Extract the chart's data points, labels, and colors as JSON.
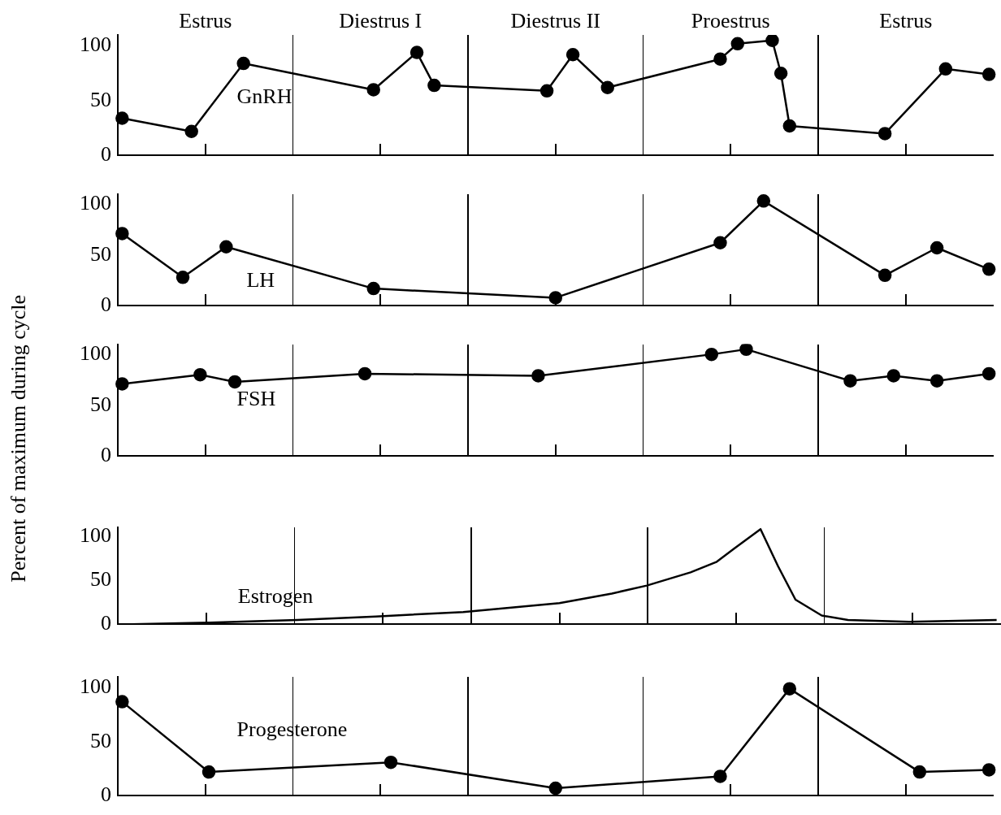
{
  "chart_data": [
    {
      "type": "line",
      "ylim": [
        0,
        110
      ],
      "yticks": [
        0,
        50,
        100
      ],
      "tick_labels": "y",
      "marker": "circle",
      "annotations": [
        "Estrus",
        "Diestrus I",
        "Diestrus II",
        "Proestrus",
        "Estrus"
      ],
      "categories": [
        null,
        null,
        null,
        null,
        null,
        null,
        null,
        null,
        null,
        null,
        null,
        null,
        null,
        null,
        null,
        null,
        null,
        null,
        null,
        null,
        null,
        null,
        null,
        null,
        null,
        null,
        null,
        null,
        null,
        null,
        null,
        null,
        null,
        null,
        null,
        null,
        null,
        null,
        null,
        null,
        null,
        null,
        null,
        null,
        null,
        null,
        null,
        null,
        null,
        null,
        null,
        null,
        null,
        null,
        null,
        null,
        null,
        null,
        null,
        null,
        null,
        null,
        null,
        null,
        null,
        null,
        null,
        null,
        null,
        null,
        null,
        null,
        null,
        null,
        null,
        null,
        null,
        null,
        null,
        null,
        null,
        null,
        null,
        null,
        null,
        null,
        null,
        null,
        null,
        null,
        null,
        null,
        null,
        null,
        null,
        null,
        null,
        null,
        null,
        null,
        null
      ],
      "series": [
        {
          "name": "GnRH",
          "color": "#000000",
          "values": [
            34,
            null,
            null,
            null,
            null,
            null,
            null,
            null,
            22,
            null,
            null,
            null,
            null,
            null,
            84,
            null,
            null,
            null,
            null,
            null,
            null,
            null,
            null,
            null,
            null,
            null,
            null,
            null,
            null,
            60,
            null,
            null,
            null,
            null,
            94,
            null,
            64,
            null,
            null,
            null,
            null,
            null,
            null,
            null,
            null,
            null,
            null,
            null,
            null,
            59,
            null,
            null,
            92,
            null,
            null,
            null,
            62,
            null,
            null,
            null,
            null,
            null,
            null,
            null,
            null,
            null,
            null,
            null,
            null,
            88,
            null,
            102,
            null,
            null,
            null,
            105,
            75,
            27,
            null,
            null,
            null,
            null,
            null,
            null,
            null,
            null,
            null,
            null,
            20,
            null,
            null,
            null,
            null,
            null,
            null,
            79,
            null,
            null,
            null,
            null,
            74
          ]
        }
      ]
    },
    {
      "type": "line",
      "ylim": [
        0,
        110
      ],
      "yticks": [
        0,
        50,
        100
      ],
      "tick_labels": "y",
      "marker": "circle",
      "categories": [
        null,
        null,
        null,
        null,
        null,
        null,
        null,
        null,
        null,
        null,
        null,
        null,
        null,
        null,
        null,
        null,
        null,
        null,
        null,
        null,
        null,
        null,
        null,
        null,
        null,
        null,
        null,
        null,
        null,
        null,
        null,
        null,
        null,
        null,
        null,
        null,
        null,
        null,
        null,
        null,
        null,
        null,
        null,
        null,
        null,
        null,
        null,
        null,
        null,
        null,
        null,
        null,
        null,
        null,
        null,
        null,
        null,
        null,
        null,
        null,
        null,
        null,
        null,
        null,
        null,
        null,
        null,
        null,
        null,
        null,
        null,
        null,
        null,
        null,
        null,
        null,
        null,
        null,
        null,
        null,
        null,
        null,
        null,
        null,
        null,
        null,
        null,
        null,
        null,
        null,
        null,
        null,
        null,
        null,
        null,
        null,
        null,
        null,
        null,
        null,
        null
      ],
      "series": [
        {
          "name": "LH",
          "color": "#000000",
          "values": [
            71,
            null,
            null,
            null,
            null,
            null,
            null,
            28,
            null,
            null,
            null,
            null,
            58,
            null,
            null,
            null,
            null,
            null,
            null,
            null,
            null,
            null,
            null,
            null,
            null,
            null,
            null,
            null,
            null,
            17,
            null,
            null,
            null,
            null,
            null,
            null,
            null,
            null,
            null,
            null,
            null,
            null,
            null,
            null,
            null,
            null,
            null,
            null,
            null,
            null,
            8,
            null,
            null,
            null,
            null,
            null,
            null,
            null,
            null,
            null,
            null,
            null,
            null,
            null,
            null,
            null,
            null,
            null,
            null,
            62,
            null,
            null,
            null,
            null,
            103,
            null,
            null,
            null,
            null,
            null,
            null,
            null,
            null,
            null,
            null,
            null,
            null,
            null,
            30,
            null,
            null,
            null,
            null,
            null,
            57,
            null,
            null,
            null,
            null,
            null,
            36
          ]
        }
      ]
    },
    {
      "type": "line",
      "ylim": [
        0,
        110
      ],
      "yticks": [
        0,
        50,
        100
      ],
      "tick_labels": "y",
      "marker": "circle",
      "ylabel": "Percent of maximum during cycle",
      "categories": [
        null,
        null,
        null,
        null,
        null,
        null,
        null,
        null,
        null,
        null,
        null,
        null,
        null,
        null,
        null,
        null,
        null,
        null,
        null,
        null,
        null,
        null,
        null,
        null,
        null,
        null,
        null,
        null,
        null,
        null,
        null,
        null,
        null,
        null,
        null,
        null,
        null,
        null,
        null,
        null,
        null,
        null,
        null,
        null,
        null,
        null,
        null,
        null,
        null,
        null,
        null,
        null,
        null,
        null,
        null,
        null,
        null,
        null,
        null,
        null,
        null,
        null,
        null,
        null,
        null,
        null,
        null,
        null,
        null,
        null,
        null,
        null,
        null,
        null,
        null,
        null,
        null,
        null,
        null,
        null,
        null,
        null,
        null,
        null,
        null,
        null,
        null,
        null,
        null,
        null,
        null,
        null,
        null,
        null,
        null,
        null,
        null,
        null,
        null,
        null,
        null
      ],
      "series": [
        {
          "name": "FSH",
          "color": "#000000",
          "values": [
            71,
            null,
            null,
            null,
            null,
            null,
            null,
            null,
            null,
            80,
            null,
            null,
            null,
            73,
            null,
            null,
            null,
            null,
            null,
            null,
            null,
            null,
            null,
            null,
            null,
            null,
            null,
            null,
            81,
            null,
            null,
            null,
            null,
            null,
            null,
            null,
            null,
            null,
            null,
            null,
            null,
            null,
            null,
            null,
            null,
            null,
            null,
            null,
            79,
            null,
            null,
            null,
            null,
            null,
            null,
            null,
            null,
            null,
            null,
            null,
            null,
            null,
            null,
            null,
            null,
            null,
            null,
            null,
            100,
            null,
            null,
            null,
            105,
            null,
            null,
            null,
            null,
            null,
            null,
            null,
            null,
            null,
            null,
            null,
            74,
            null,
            null,
            null,
            null,
            79,
            null,
            null,
            null,
            null,
            74,
            null,
            null,
            null,
            null,
            null,
            81
          ]
        }
      ]
    },
    {
      "type": "line",
      "ylim": [
        0,
        110
      ],
      "yticks": [
        0,
        50,
        100
      ],
      "tick_labels": "y",
      "marker": "none",
      "categories": [
        null,
        null,
        null,
        null,
        null,
        null,
        null,
        null,
        null,
        null,
        null,
        null,
        null,
        null,
        null,
        null,
        null,
        null,
        null,
        null,
        null,
        null,
        null,
        null,
        null,
        null,
        null,
        null,
        null,
        null,
        null,
        null,
        null,
        null,
        null,
        null,
        null,
        null,
        null,
        null,
        null,
        null,
        null,
        null,
        null,
        null,
        null,
        null,
        null,
        null,
        null,
        null,
        null,
        null,
        null,
        null,
        null,
        null,
        null,
        null,
        null,
        null,
        null,
        null,
        null,
        null,
        null,
        null,
        null,
        null,
        null,
        null,
        null,
        null,
        null,
        null,
        null,
        null,
        null,
        null,
        null,
        null,
        null,
        null,
        null,
        null,
        null,
        null,
        null,
        null,
        null,
        null,
        null,
        null,
        null,
        null,
        null,
        null,
        null,
        null,
        null
      ],
      "series": [
        {
          "name": "Estrogen",
          "color": "#000000",
          "values": [
            0,
            null,
            null,
            null,
            null,
            null,
            null,
            null,
            null,
            null,
            2,
            null,
            null,
            null,
            null,
            null,
            null,
            null,
            null,
            null,
            5,
            null,
            null,
            null,
            null,
            null,
            null,
            null,
            null,
            9,
            null,
            null,
            null,
            null,
            null,
            null,
            null,
            null,
            null,
            14,
            null,
            null,
            null,
            null,
            null,
            null,
            null,
            null,
            null,
            null,
            24,
            null,
            null,
            null,
            null,
            null,
            35,
            null,
            null,
            null,
            44,
            null,
            null,
            null,
            null,
            59,
            null,
            null,
            71,
            null,
            86,
            null,
            null,
            108,
            null,
            66,
            null,
            28,
            null,
            16,
            10,
            null,
            null,
            5,
            null,
            null,
            null,
            null,
            null,
            null,
            3,
            null,
            null,
            null,
            null,
            null,
            null,
            null,
            null,
            null,
            5
          ]
        }
      ]
    },
    {
      "type": "line",
      "ylim": [
        0,
        110
      ],
      "yticks": [
        0,
        50,
        100
      ],
      "tick_labels": "y",
      "marker": "circle",
      "categories": [
        null,
        null,
        null,
        null,
        null,
        null,
        null,
        null,
        null,
        null,
        null,
        null,
        null,
        null,
        null,
        null,
        null,
        null,
        null,
        null,
        null,
        null,
        null,
        null,
        null,
        null,
        null,
        null,
        null,
        null,
        null,
        null,
        null,
        null,
        null,
        null,
        null,
        null,
        null,
        null,
        null,
        null,
        null,
        null,
        null,
        null,
        null,
        null,
        null,
        null,
        null,
        null,
        null,
        null,
        null,
        null,
        null,
        null,
        null,
        null,
        null,
        null,
        null,
        null,
        null,
        null,
        null,
        null,
        null,
        null,
        null,
        null,
        null,
        null,
        null,
        null,
        null,
        null,
        null,
        null,
        null,
        null,
        null,
        null,
        null,
        null,
        null,
        null,
        null,
        null,
        null,
        null,
        null,
        null,
        null,
        null,
        null,
        null,
        null,
        null,
        null
      ],
      "series": [
        {
          "name": "Progesterone",
          "color": "#000000",
          "values": [
            87,
            null,
            null,
            null,
            null,
            null,
            null,
            null,
            null,
            null,
            22,
            null,
            null,
            null,
            null,
            null,
            null,
            null,
            null,
            null,
            null,
            null,
            null,
            null,
            null,
            null,
            null,
            null,
            null,
            null,
            null,
            31,
            null,
            null,
            null,
            null,
            null,
            null,
            null,
            null,
            null,
            null,
            null,
            null,
            null,
            null,
            null,
            null,
            null,
            null,
            7,
            null,
            null,
            null,
            null,
            null,
            null,
            null,
            null,
            null,
            null,
            null,
            null,
            null,
            null,
            null,
            null,
            null,
            null,
            18,
            null,
            null,
            null,
            null,
            null,
            null,
            null,
            99,
            null,
            null,
            null,
            null,
            null,
            null,
            null,
            null,
            null,
            null,
            null,
            null,
            null,
            null,
            22,
            null,
            null,
            null,
            null,
            null,
            null,
            null,
            24
          ]
        }
      ]
    }
  ]
}
